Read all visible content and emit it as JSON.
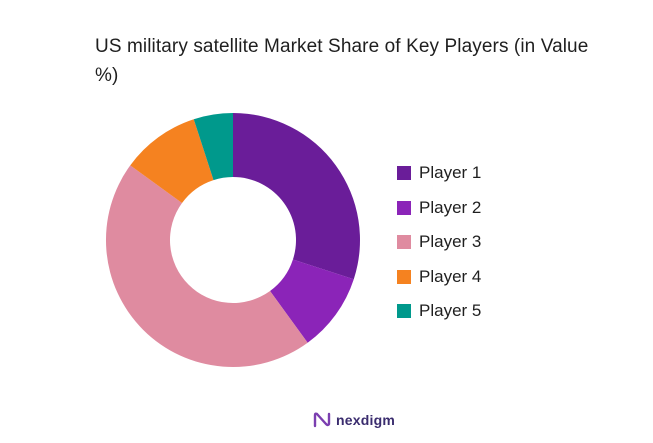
{
  "chart_data": {
    "type": "pie",
    "style": "donut",
    "title": "US military satellite Market Share of Key Players (in Value %)",
    "categories": [
      "Player 1",
      "Player 2",
      "Player 3",
      "Player 4",
      "Player 5"
    ],
    "values": [
      30,
      10,
      45,
      10,
      5
    ],
    "colors": [
      "#6a1d99",
      "#8b24b8",
      "#df8ba0",
      "#f58220",
      "#00998c"
    ],
    "legend": "right",
    "start_angle": "12 o'clock",
    "direction": "clockwise"
  },
  "branding": {
    "name": "nexdigm",
    "logo_icon": "nexdigm-logo-icon",
    "color": "#3a2c6e"
  }
}
